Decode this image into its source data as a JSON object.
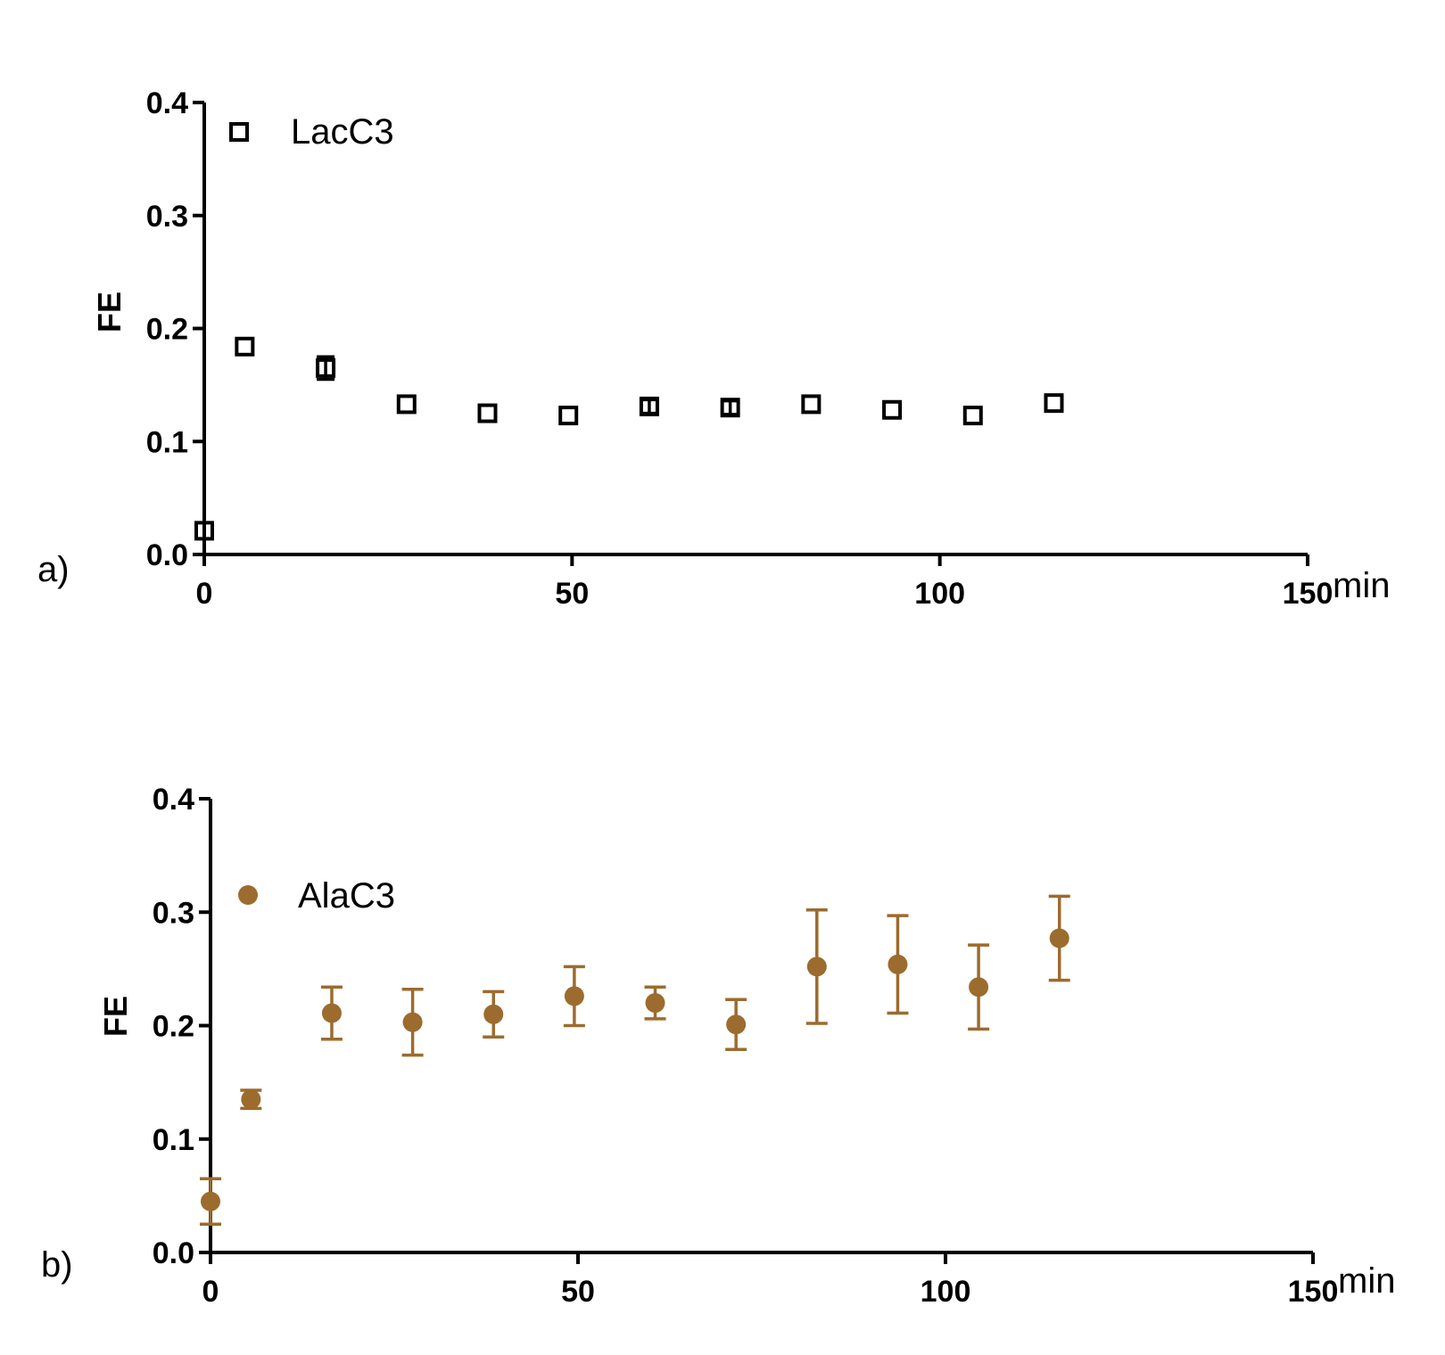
{
  "chart_data": [
    {
      "type": "scatter",
      "panel_label": "a)",
      "ylabel": "FE",
      "x_unit": "min",
      "xlim": [
        0,
        150
      ],
      "ylim": [
        0,
        0.4
      ],
      "x_ticks": [
        0,
        50,
        100,
        150
      ],
      "y_ticks": [
        0.0,
        0.1,
        0.2,
        0.3,
        0.4
      ],
      "x_tick_labels": [
        "0",
        "50",
        "100",
        "150"
      ],
      "y_tick_labels": [
        "0.0",
        "0.1",
        "0.2",
        "0.3",
        "0.4"
      ],
      "legend_position": "top-left",
      "grid": false,
      "series": [
        {
          "name": "LacC3",
          "marker": "open-square",
          "color": "#000000",
          "x": [
            0,
            5.5,
            16.5,
            27.5,
            38.5,
            49.5,
            60.5,
            71.5,
            82.5,
            93.5,
            104.5,
            115.5
          ],
          "y": [
            0.021,
            0.184,
            0.165,
            0.133,
            0.125,
            0.123,
            0.131,
            0.13,
            0.133,
            0.128,
            0.123,
            0.134
          ],
          "error": [
            0,
            0,
            0.01,
            0,
            0,
            0,
            0.006,
            0.006,
            0,
            0,
            0,
            0
          ]
        }
      ]
    },
    {
      "type": "scatter",
      "panel_label": "b)",
      "ylabel": "FE",
      "x_unit": "min",
      "xlim": [
        0,
        150
      ],
      "ylim": [
        0,
        0.4
      ],
      "x_ticks": [
        0,
        50,
        100,
        150
      ],
      "y_ticks": [
        0.0,
        0.1,
        0.2,
        0.3,
        0.4
      ],
      "x_tick_labels": [
        "0",
        "50",
        "100",
        "150"
      ],
      "y_tick_labels": [
        "0.0",
        "0.1",
        "0.2",
        "0.3",
        "0.4"
      ],
      "legend_position": "top-left",
      "grid": false,
      "series": [
        {
          "name": "AlaC3",
          "marker": "filled-circle",
          "color": "#9C6B2E",
          "x": [
            0,
            5.5,
            16.5,
            27.5,
            38.5,
            49.5,
            60.5,
            71.5,
            82.5,
            93.5,
            104.5,
            115.5
          ],
          "y": [
            0.045,
            0.135,
            0.211,
            0.203,
            0.21,
            0.226,
            0.22,
            0.201,
            0.252,
            0.254,
            0.234,
            0.277
          ],
          "error": [
            0.02,
            0.008,
            0.023,
            0.029,
            0.02,
            0.026,
            0.014,
            0.022,
            0.05,
            0.043,
            0.037,
            0.037
          ]
        }
      ]
    }
  ]
}
